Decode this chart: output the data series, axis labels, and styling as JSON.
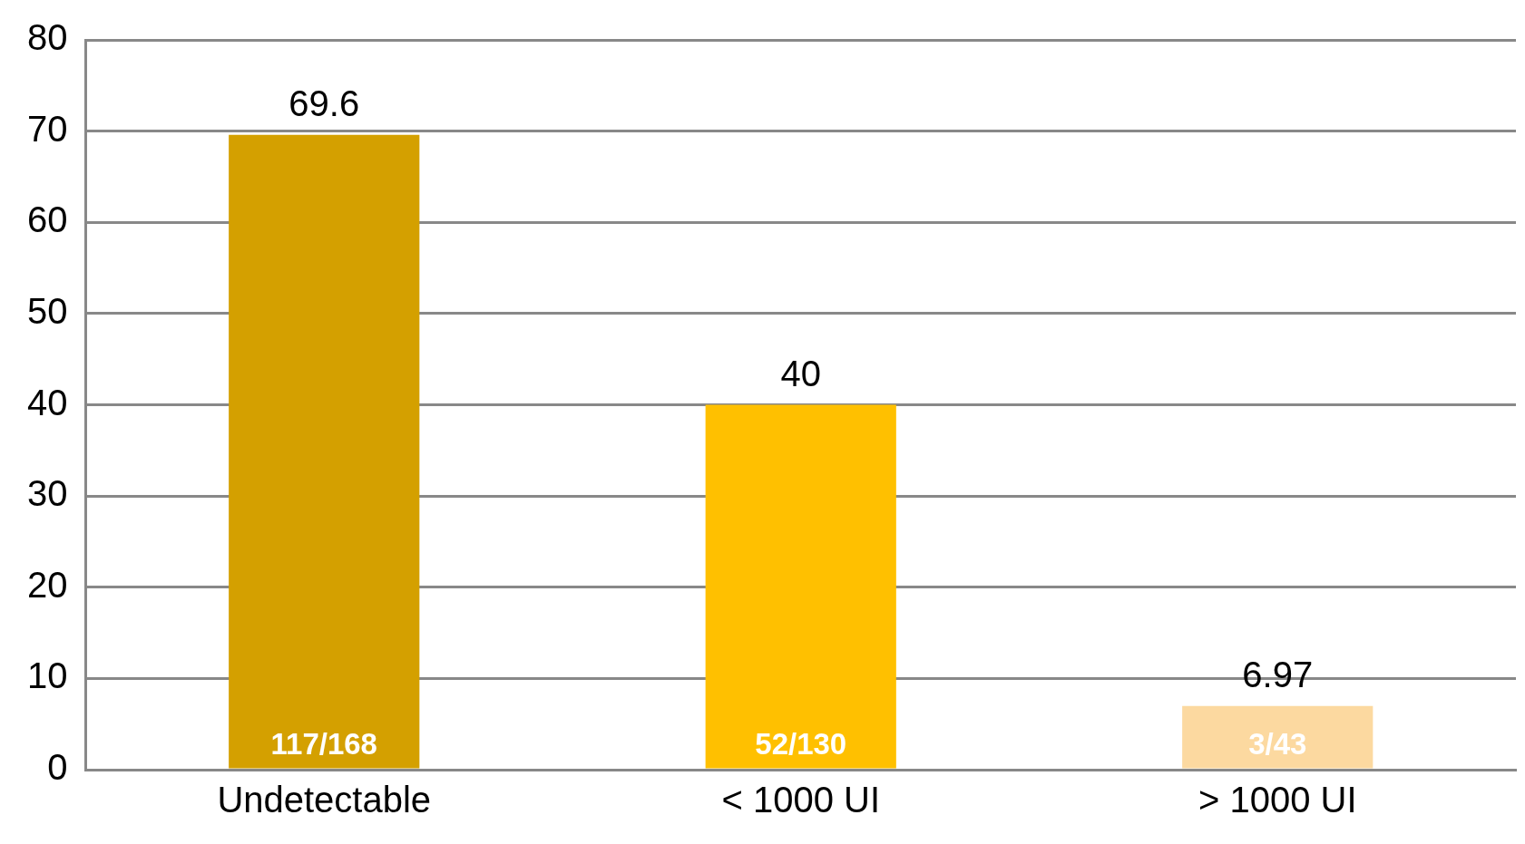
{
  "chart_data": {
    "type": "bar",
    "categories": [
      "Undetectable",
      "< 1000 UI",
      "> 1000 UI"
    ],
    "values": [
      69.6,
      40,
      6.97
    ],
    "colors": [
      "#d4a000",
      "#ffc000",
      "#fcd9a0"
    ],
    "data_labels": true,
    "ylim": [
      0,
      80
    ],
    "yticks": [
      0,
      10,
      20,
      30,
      40,
      50,
      60,
      70,
      80
    ],
    "grid": "y",
    "legend": false,
    "annotations": [
      "117/168",
      "52/130",
      "3/43"
    ]
  }
}
